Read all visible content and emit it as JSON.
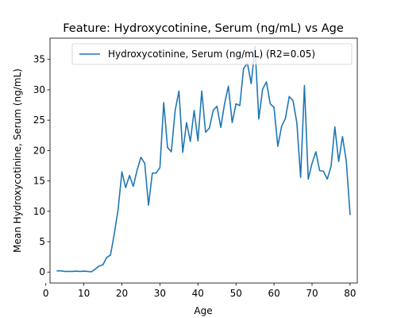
{
  "chart_data": {
    "type": "line",
    "title": "Feature: Hydroxycotinine, Serum (ng/mL) vs Age",
    "xlabel": "Age",
    "ylabel": "Mean Hydroxycotinine, Serum (ng/mL)",
    "xlim": [
      1.1,
      81.9
    ],
    "ylim": [
      -1.8,
      38.5
    ],
    "xticks": [
      0,
      10,
      20,
      30,
      40,
      50,
      60,
      70,
      80
    ],
    "yticks": [
      0,
      5,
      10,
      15,
      20,
      25,
      30,
      35
    ],
    "grid": false,
    "legend_position": "top-right",
    "series": [
      {
        "name": "Hydroxycotinine, Serum (ng/mL) (R2=0.05)",
        "color": "#1f77b4",
        "x": [
          3,
          4,
          5,
          6,
          7,
          8,
          9,
          10,
          11,
          12,
          13,
          14,
          15,
          16,
          17,
          18,
          19,
          20,
          21,
          22,
          23,
          24,
          25,
          26,
          27,
          28,
          29,
          30,
          31,
          32,
          33,
          34,
          35,
          36,
          37,
          38,
          39,
          40,
          41,
          42,
          43,
          44,
          45,
          46,
          47,
          48,
          49,
          50,
          51,
          52,
          53,
          54,
          55,
          56,
          57,
          58,
          59,
          60,
          61,
          62,
          63,
          64,
          65,
          66,
          67,
          68,
          69,
          70,
          71,
          72,
          73,
          74,
          75,
          76,
          77,
          78,
          79,
          80
        ],
        "y": [
          0.2,
          0.2,
          0.1,
          0.1,
          0.1,
          0.15,
          0.1,
          0.15,
          0.1,
          0.05,
          0.5,
          1.0,
          1.2,
          2.4,
          2.8,
          6.3,
          10.3,
          16.5,
          13.9,
          15.9,
          14.1,
          16.8,
          18.9,
          17.9,
          11.0,
          16.3,
          16.3,
          17.2,
          27.9,
          20.5,
          19.8,
          26.6,
          29.8,
          19.7,
          24.6,
          21.5,
          26.6,
          21.6,
          29.8,
          23.0,
          23.7,
          26.6,
          27.3,
          23.8,
          27.7,
          30.6,
          24.6,
          27.7,
          27.4,
          33.5,
          34.4,
          31.0,
          37.1,
          25.2,
          30.1,
          31.3,
          27.7,
          27.1,
          20.7,
          24.0,
          25.3,
          28.9,
          28.2,
          24.6,
          15.6,
          30.7,
          15.3,
          17.9,
          19.8,
          16.7,
          16.6,
          15.3,
          17.4,
          23.9,
          18.2,
          22.3,
          18.3,
          9.5
        ]
      }
    ]
  }
}
